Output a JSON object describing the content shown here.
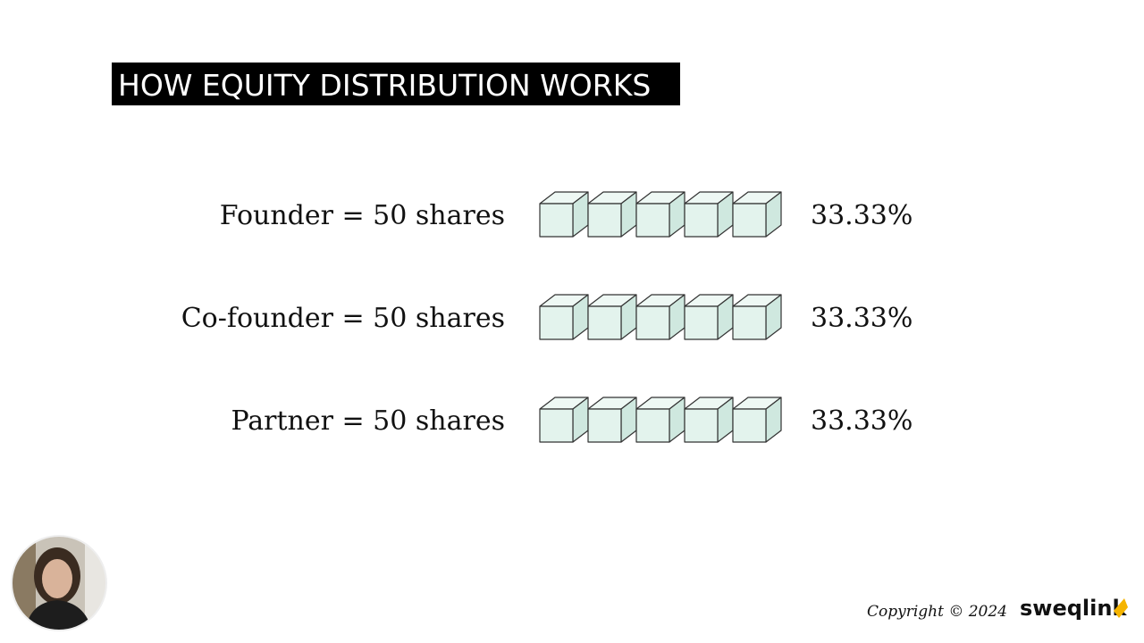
{
  "header": {
    "title": "HOW EQUITY DISTRIBUTION WORKS"
  },
  "rows": [
    {
      "label": "Founder = 50 shares",
      "percent": "33.33%"
    },
    {
      "label": "Co-founder = 50 shares",
      "percent": "33.33%"
    },
    {
      "label": "Partner = 50 shares",
      "percent": "33.33%"
    }
  ],
  "footer": {
    "copyright": "Copyright © 2024",
    "brand": "sweqlink"
  }
}
